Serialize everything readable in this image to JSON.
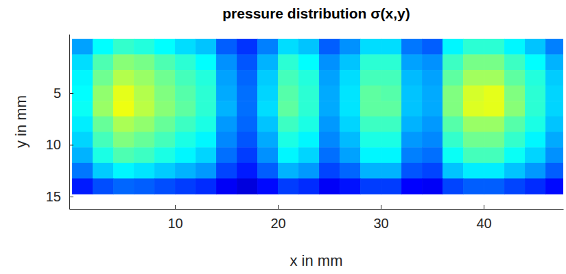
{
  "chart_data": {
    "type": "heatmap",
    "title": "pressure distribution σ(x,y)",
    "x_label": "x in mm",
    "y_label": "y in mm",
    "xlim": [
      -0.27,
      47.73
    ],
    "xticks": [
      10,
      20,
      30,
      40
    ],
    "ylim": [
      -0.7,
      16.2
    ],
    "yticks": [
      5,
      10,
      15
    ],
    "zlim": [
      0,
      1.2
    ],
    "x": [
      1,
      3,
      5,
      7,
      9,
      11,
      13,
      15,
      17,
      19,
      21,
      23,
      25,
      27,
      29,
      31,
      33,
      35,
      37,
      39,
      41,
      43,
      45,
      47
    ],
    "y": [
      0.5,
      2,
      3.5,
      5,
      6.5,
      8,
      9.5,
      11,
      12.5,
      14
    ],
    "values": [
      [
        0.34,
        0.45,
        0.51,
        0.49,
        0.45,
        0.41,
        0.38,
        0.26,
        0.21,
        0.3,
        0.41,
        0.38,
        0.26,
        0.32,
        0.41,
        0.41,
        0.29,
        0.26,
        0.44,
        0.5,
        0.5,
        0.44,
        0.38,
        0.3
      ],
      [
        0.41,
        0.54,
        0.61,
        0.59,
        0.54,
        0.5,
        0.45,
        0.32,
        0.25,
        0.36,
        0.5,
        0.45,
        0.32,
        0.38,
        0.5,
        0.5,
        0.34,
        0.32,
        0.52,
        0.59,
        0.59,
        0.52,
        0.45,
        0.36
      ],
      [
        0.44,
        0.58,
        0.66,
        0.63,
        0.58,
        0.53,
        0.49,
        0.34,
        0.27,
        0.39,
        0.53,
        0.49,
        0.34,
        0.41,
        0.53,
        0.53,
        0.37,
        0.34,
        0.56,
        0.64,
        0.64,
        0.56,
        0.49,
        0.39
      ],
      [
        0.45,
        0.62,
        0.72,
        0.66,
        0.6,
        0.55,
        0.5,
        0.35,
        0.28,
        0.4,
        0.55,
        0.5,
        0.35,
        0.42,
        0.56,
        0.55,
        0.38,
        0.35,
        0.6,
        0.7,
        0.72,
        0.6,
        0.5,
        0.4
      ],
      [
        0.46,
        0.63,
        0.73,
        0.67,
        0.61,
        0.56,
        0.5,
        0.36,
        0.28,
        0.41,
        0.56,
        0.5,
        0.35,
        0.42,
        0.56,
        0.56,
        0.38,
        0.35,
        0.6,
        0.71,
        0.72,
        0.61,
        0.5,
        0.4
      ],
      [
        0.43,
        0.57,
        0.65,
        0.62,
        0.57,
        0.52,
        0.48,
        0.33,
        0.27,
        0.38,
        0.52,
        0.48,
        0.33,
        0.4,
        0.52,
        0.52,
        0.36,
        0.33,
        0.55,
        0.63,
        0.63,
        0.55,
        0.48,
        0.38
      ],
      [
        0.4,
        0.53,
        0.6,
        0.57,
        0.53,
        0.48,
        0.44,
        0.31,
        0.25,
        0.35,
        0.48,
        0.44,
        0.31,
        0.37,
        0.48,
        0.48,
        0.33,
        0.31,
        0.51,
        0.58,
        0.58,
        0.51,
        0.44,
        0.35
      ],
      [
        0.36,
        0.48,
        0.54,
        0.52,
        0.48,
        0.44,
        0.4,
        0.28,
        0.22,
        0.32,
        0.44,
        0.4,
        0.28,
        0.34,
        0.44,
        0.44,
        0.3,
        0.28,
        0.46,
        0.53,
        0.53,
        0.46,
        0.4,
        0.32
      ],
      [
        0.29,
        0.39,
        0.44,
        0.42,
        0.39,
        0.36,
        0.33,
        0.23,
        0.18,
        0.26,
        0.36,
        0.33,
        0.23,
        0.27,
        0.36,
        0.36,
        0.25,
        0.23,
        0.38,
        0.43,
        0.43,
        0.38,
        0.33,
        0.26
      ],
      [
        0.18,
        0.24,
        0.27,
        0.26,
        0.24,
        0.22,
        0.2,
        0.14,
        0.11,
        0.16,
        0.22,
        0.2,
        0.14,
        0.17,
        0.22,
        0.22,
        0.15,
        0.14,
        0.23,
        0.26,
        0.26,
        0.23,
        0.2,
        0.16
      ]
    ]
  }
}
